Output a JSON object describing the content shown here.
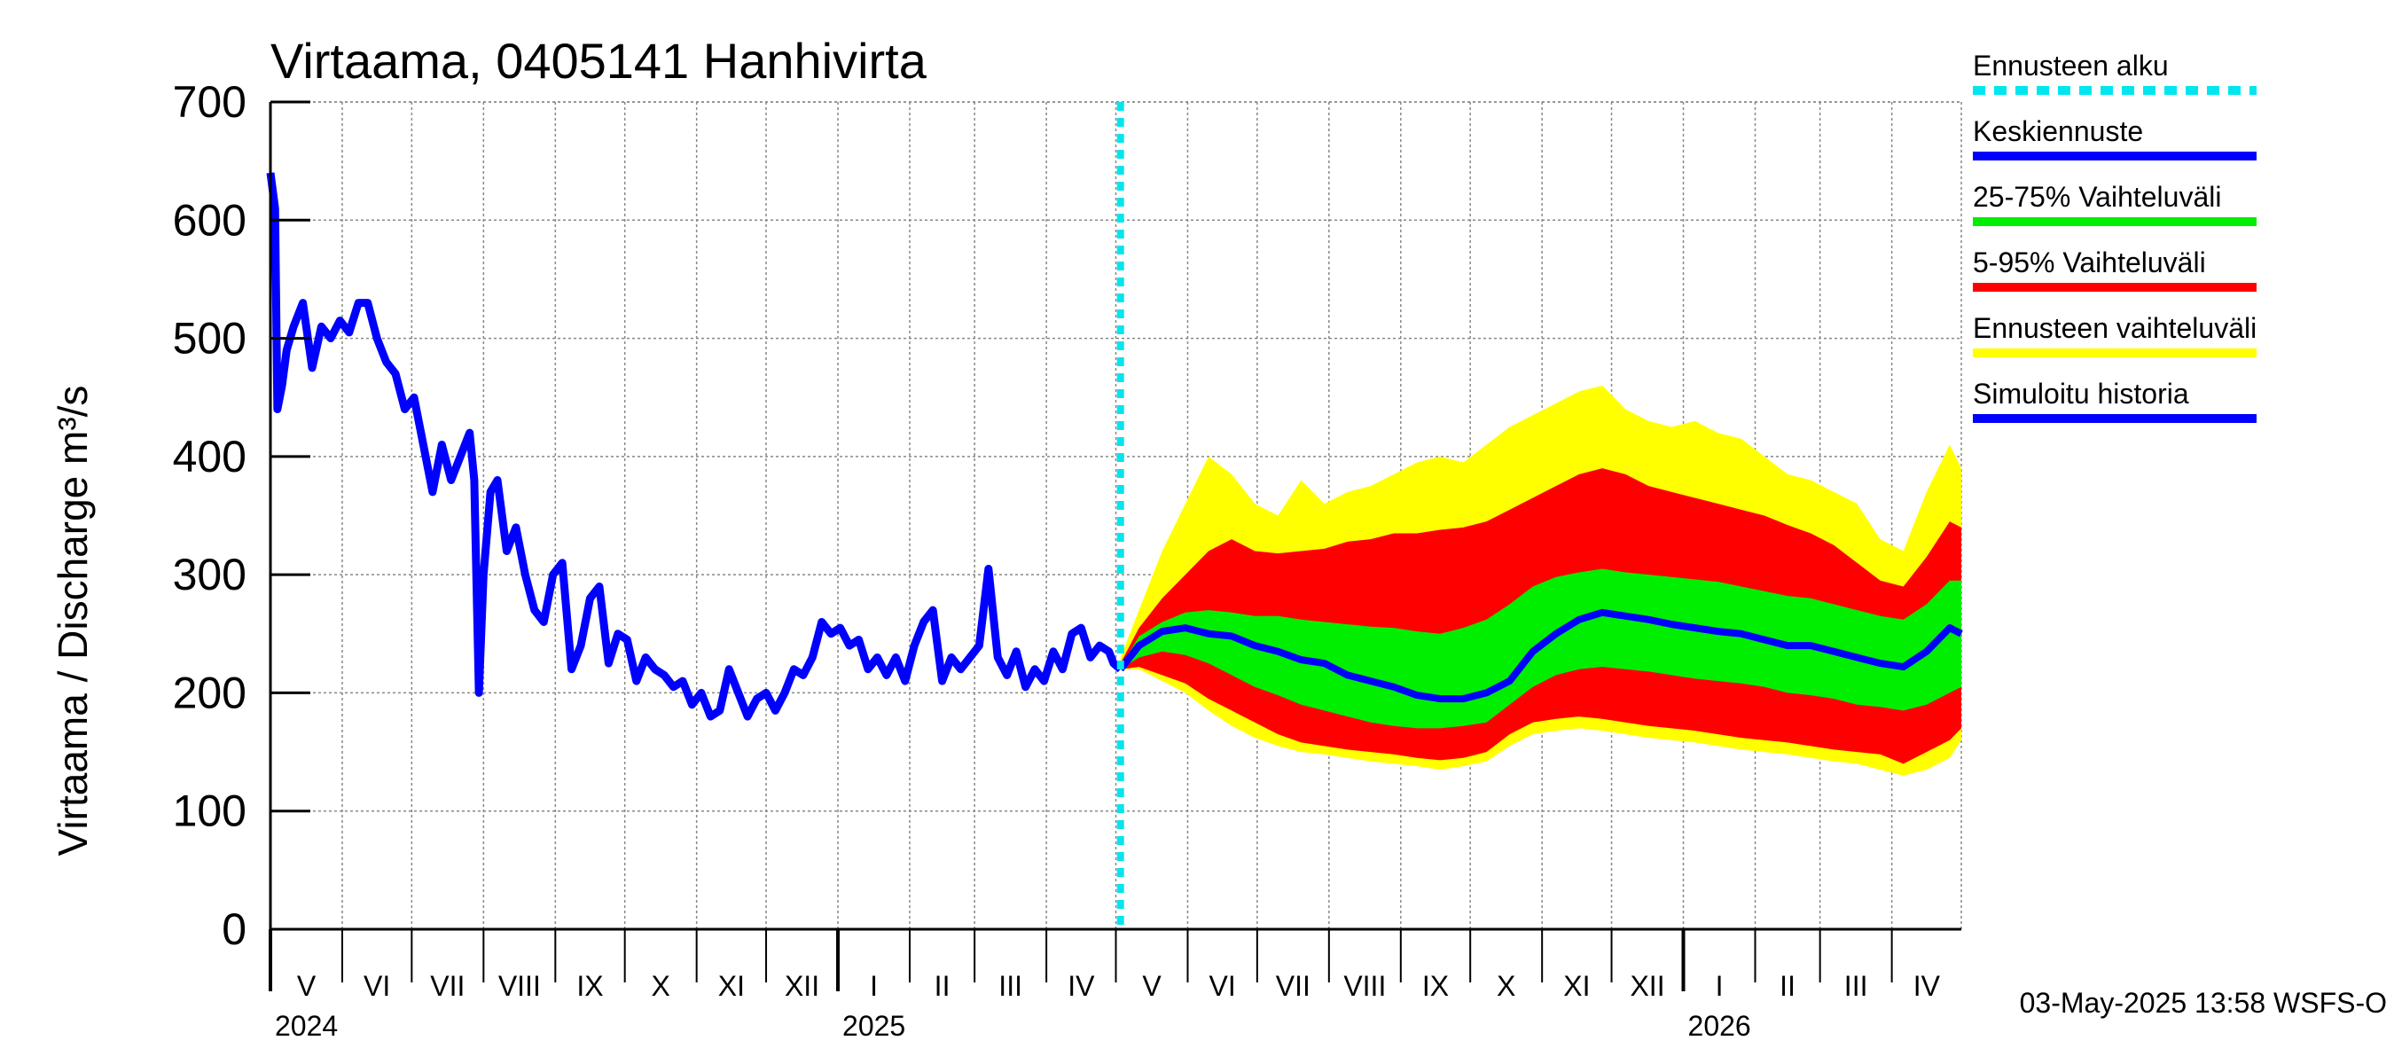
{
  "chart_data": {
    "type": "area",
    "title": "Virtaama, 0405141 Hanhivirta",
    "ylabel": "Virtaama / Discharge    m³/s",
    "ylim": [
      0,
      700
    ],
    "yticks": [
      0,
      100,
      200,
      300,
      400,
      500,
      600,
      700
    ],
    "grid": true,
    "x_range_days": [
      0,
      730
    ],
    "months": [
      {
        "label": "V",
        "start": 0
      },
      {
        "label": "VI",
        "start": 31
      },
      {
        "label": "VII",
        "start": 61
      },
      {
        "label": "VIII",
        "start": 92
      },
      {
        "label": "IX",
        "start": 123
      },
      {
        "label": "X",
        "start": 153
      },
      {
        "label": "XI",
        "start": 184
      },
      {
        "label": "XII",
        "start": 214
      },
      {
        "label": "I",
        "start": 245
      },
      {
        "label": "II",
        "start": 276
      },
      {
        "label": "III",
        "start": 304
      },
      {
        "label": "IV",
        "start": 335
      },
      {
        "label": "V",
        "start": 365
      },
      {
        "label": "VI",
        "start": 396
      },
      {
        "label": "VII",
        "start": 426
      },
      {
        "label": "VIII",
        "start": 457
      },
      {
        "label": "IX",
        "start": 488
      },
      {
        "label": "X",
        "start": 518
      },
      {
        "label": "XI",
        "start": 549
      },
      {
        "label": "XII",
        "start": 579
      },
      {
        "label": "I",
        "start": 610
      },
      {
        "label": "II",
        "start": 641
      },
      {
        "label": "III",
        "start": 669
      },
      {
        "label": "IV",
        "start": 700
      }
    ],
    "month_end": 730,
    "years": [
      {
        "label": "2024",
        "day": 0
      },
      {
        "label": "2025",
        "day": 245
      },
      {
        "label": "2026",
        "day": 610
      }
    ],
    "forecast_start_day": 367,
    "history": {
      "name": "Simuloitu historia",
      "x": [
        0,
        2,
        3,
        5,
        7,
        10,
        14,
        18,
        22,
        26,
        30,
        34,
        38,
        42,
        46,
        50,
        54,
        58,
        62,
        66,
        70,
        74,
        78,
        82,
        86,
        88,
        90,
        92,
        95,
        98,
        102,
        106,
        110,
        114,
        118,
        122,
        126,
        130,
        134,
        138,
        142,
        146,
        150,
        154,
        158,
        162,
        166,
        170,
        174,
        178,
        182,
        186,
        190,
        194,
        198,
        202,
        206,
        210,
        214,
        218,
        222,
        226,
        230,
        234,
        238,
        242,
        246,
        250,
        254,
        258,
        262,
        266,
        270,
        274,
        278,
        282,
        286,
        290,
        294,
        298,
        302,
        306,
        310,
        314,
        318,
        322,
        326,
        330,
        334,
        338,
        342,
        346,
        350,
        354,
        358,
        362,
        364,
        367
      ],
      "y": [
        640,
        610,
        440,
        460,
        490,
        510,
        530,
        475,
        510,
        500,
        515,
        505,
        530,
        530,
        500,
        480,
        470,
        440,
        450,
        410,
        370,
        410,
        380,
        400,
        420,
        380,
        200,
        300,
        370,
        380,
        320,
        340,
        300,
        270,
        260,
        300,
        310,
        220,
        240,
        280,
        290,
        225,
        250,
        245,
        210,
        230,
        220,
        215,
        205,
        210,
        190,
        200,
        180,
        185,
        220,
        200,
        180,
        195,
        200,
        185,
        200,
        220,
        215,
        230,
        260,
        250,
        255,
        240,
        245,
        220,
        230,
        215,
        230,
        210,
        240,
        260,
        270,
        210,
        230,
        220,
        230,
        240,
        305,
        230,
        215,
        235,
        205,
        220,
        210,
        235,
        220,
        250,
        255,
        230,
        240,
        235,
        225,
        220
      ]
    },
    "forecast_x": [
      367,
      375,
      385,
      395,
      405,
      415,
      425,
      435,
      445,
      455,
      465,
      475,
      485,
      495,
      505,
      515,
      525,
      535,
      545,
      555,
      565,
      575,
      585,
      595,
      605,
      615,
      625,
      635,
      645,
      655,
      665,
      675,
      685,
      695,
      705,
      715,
      725,
      730
    ],
    "forecast_median": {
      "name": "Keskiennuste",
      "y": [
        220,
        240,
        252,
        255,
        250,
        248,
        240,
        235,
        228,
        225,
        215,
        210,
        205,
        198,
        195,
        195,
        200,
        210,
        235,
        250,
        262,
        268,
        265,
        262,
        258,
        255,
        252,
        250,
        245,
        240,
        240,
        235,
        230,
        225,
        222,
        235,
        255,
        250
      ]
    },
    "band_25_75": {
      "name": "25-75% Vaihteluväli",
      "lower": [
        220,
        230,
        235,
        232,
        225,
        215,
        205,
        198,
        190,
        185,
        180,
        175,
        172,
        170,
        170,
        172,
        175,
        190,
        205,
        215,
        220,
        222,
        220,
        218,
        215,
        212,
        210,
        208,
        205,
        200,
        198,
        195,
        190,
        188,
        185,
        190,
        200,
        205
      ],
      "upper": [
        222,
        248,
        260,
        268,
        270,
        268,
        265,
        265,
        262,
        260,
        258,
        256,
        255,
        252,
        250,
        255,
        262,
        275,
        290,
        298,
        302,
        305,
        302,
        300,
        298,
        296,
        294,
        290,
        286,
        282,
        280,
        275,
        270,
        265,
        262,
        275,
        295,
        295
      ]
    },
    "band_5_95": {
      "name": "5-95% Vaihteluväli",
      "lower": [
        220,
        222,
        215,
        208,
        195,
        185,
        175,
        165,
        158,
        155,
        152,
        150,
        148,
        145,
        143,
        145,
        150,
        165,
        175,
        178,
        180,
        178,
        175,
        172,
        170,
        168,
        165,
        162,
        160,
        158,
        155,
        152,
        150,
        148,
        140,
        150,
        160,
        170
      ],
      "upper": [
        225,
        255,
        280,
        300,
        320,
        330,
        320,
        318,
        320,
        322,
        328,
        330,
        335,
        335,
        338,
        340,
        345,
        355,
        365,
        375,
        385,
        390,
        385,
        375,
        370,
        365,
        360,
        355,
        350,
        342,
        335,
        325,
        310,
        295,
        290,
        315,
        345,
        340
      ]
    },
    "band_range": {
      "name": "Ennusteen vaihteluväli",
      "lower": [
        220,
        220,
        210,
        200,
        185,
        172,
        162,
        155,
        150,
        148,
        145,
        142,
        140,
        138,
        135,
        138,
        142,
        155,
        165,
        168,
        170,
        168,
        165,
        162,
        160,
        158,
        155,
        152,
        150,
        148,
        145,
        142,
        140,
        135,
        130,
        135,
        145,
        160
      ],
      "upper": [
        230,
        270,
        320,
        360,
        400,
        385,
        360,
        350,
        380,
        360,
        370,
        375,
        385,
        395,
        400,
        395,
        410,
        425,
        435,
        445,
        455,
        460,
        440,
        430,
        425,
        430,
        420,
        415,
        400,
        385,
        380,
        370,
        360,
        330,
        320,
        370,
        410,
        390
      ]
    },
    "legend": [
      {
        "label": "Ennusteen alku",
        "color": "#00e5ee",
        "style": "dashed"
      },
      {
        "label": "Keskiennuste",
        "color": "#0000ff",
        "style": "solid"
      },
      {
        "label": "25-75% Vaihteluväli",
        "color": "#00ee00",
        "style": "solid"
      },
      {
        "label": "5-95% Vaihteluväli",
        "color": "#ff0000",
        "style": "solid"
      },
      {
        "label": "Ennusteen vaihteluväli",
        "color": "#ffff00",
        "style": "solid"
      },
      {
        "label": "Simuloitu historia",
        "color": "#0000ff",
        "style": "solid"
      }
    ],
    "legend_position": "right",
    "timestamp": "03-May-2025 13:58 WSFS-O",
    "colors": {
      "history": "#0000ff",
      "median": "#0000ff",
      "band_25_75": "#00ee00",
      "band_5_95": "#ff0000",
      "band_range": "#ffff00",
      "forecast_start": "#00e5ee"
    }
  }
}
